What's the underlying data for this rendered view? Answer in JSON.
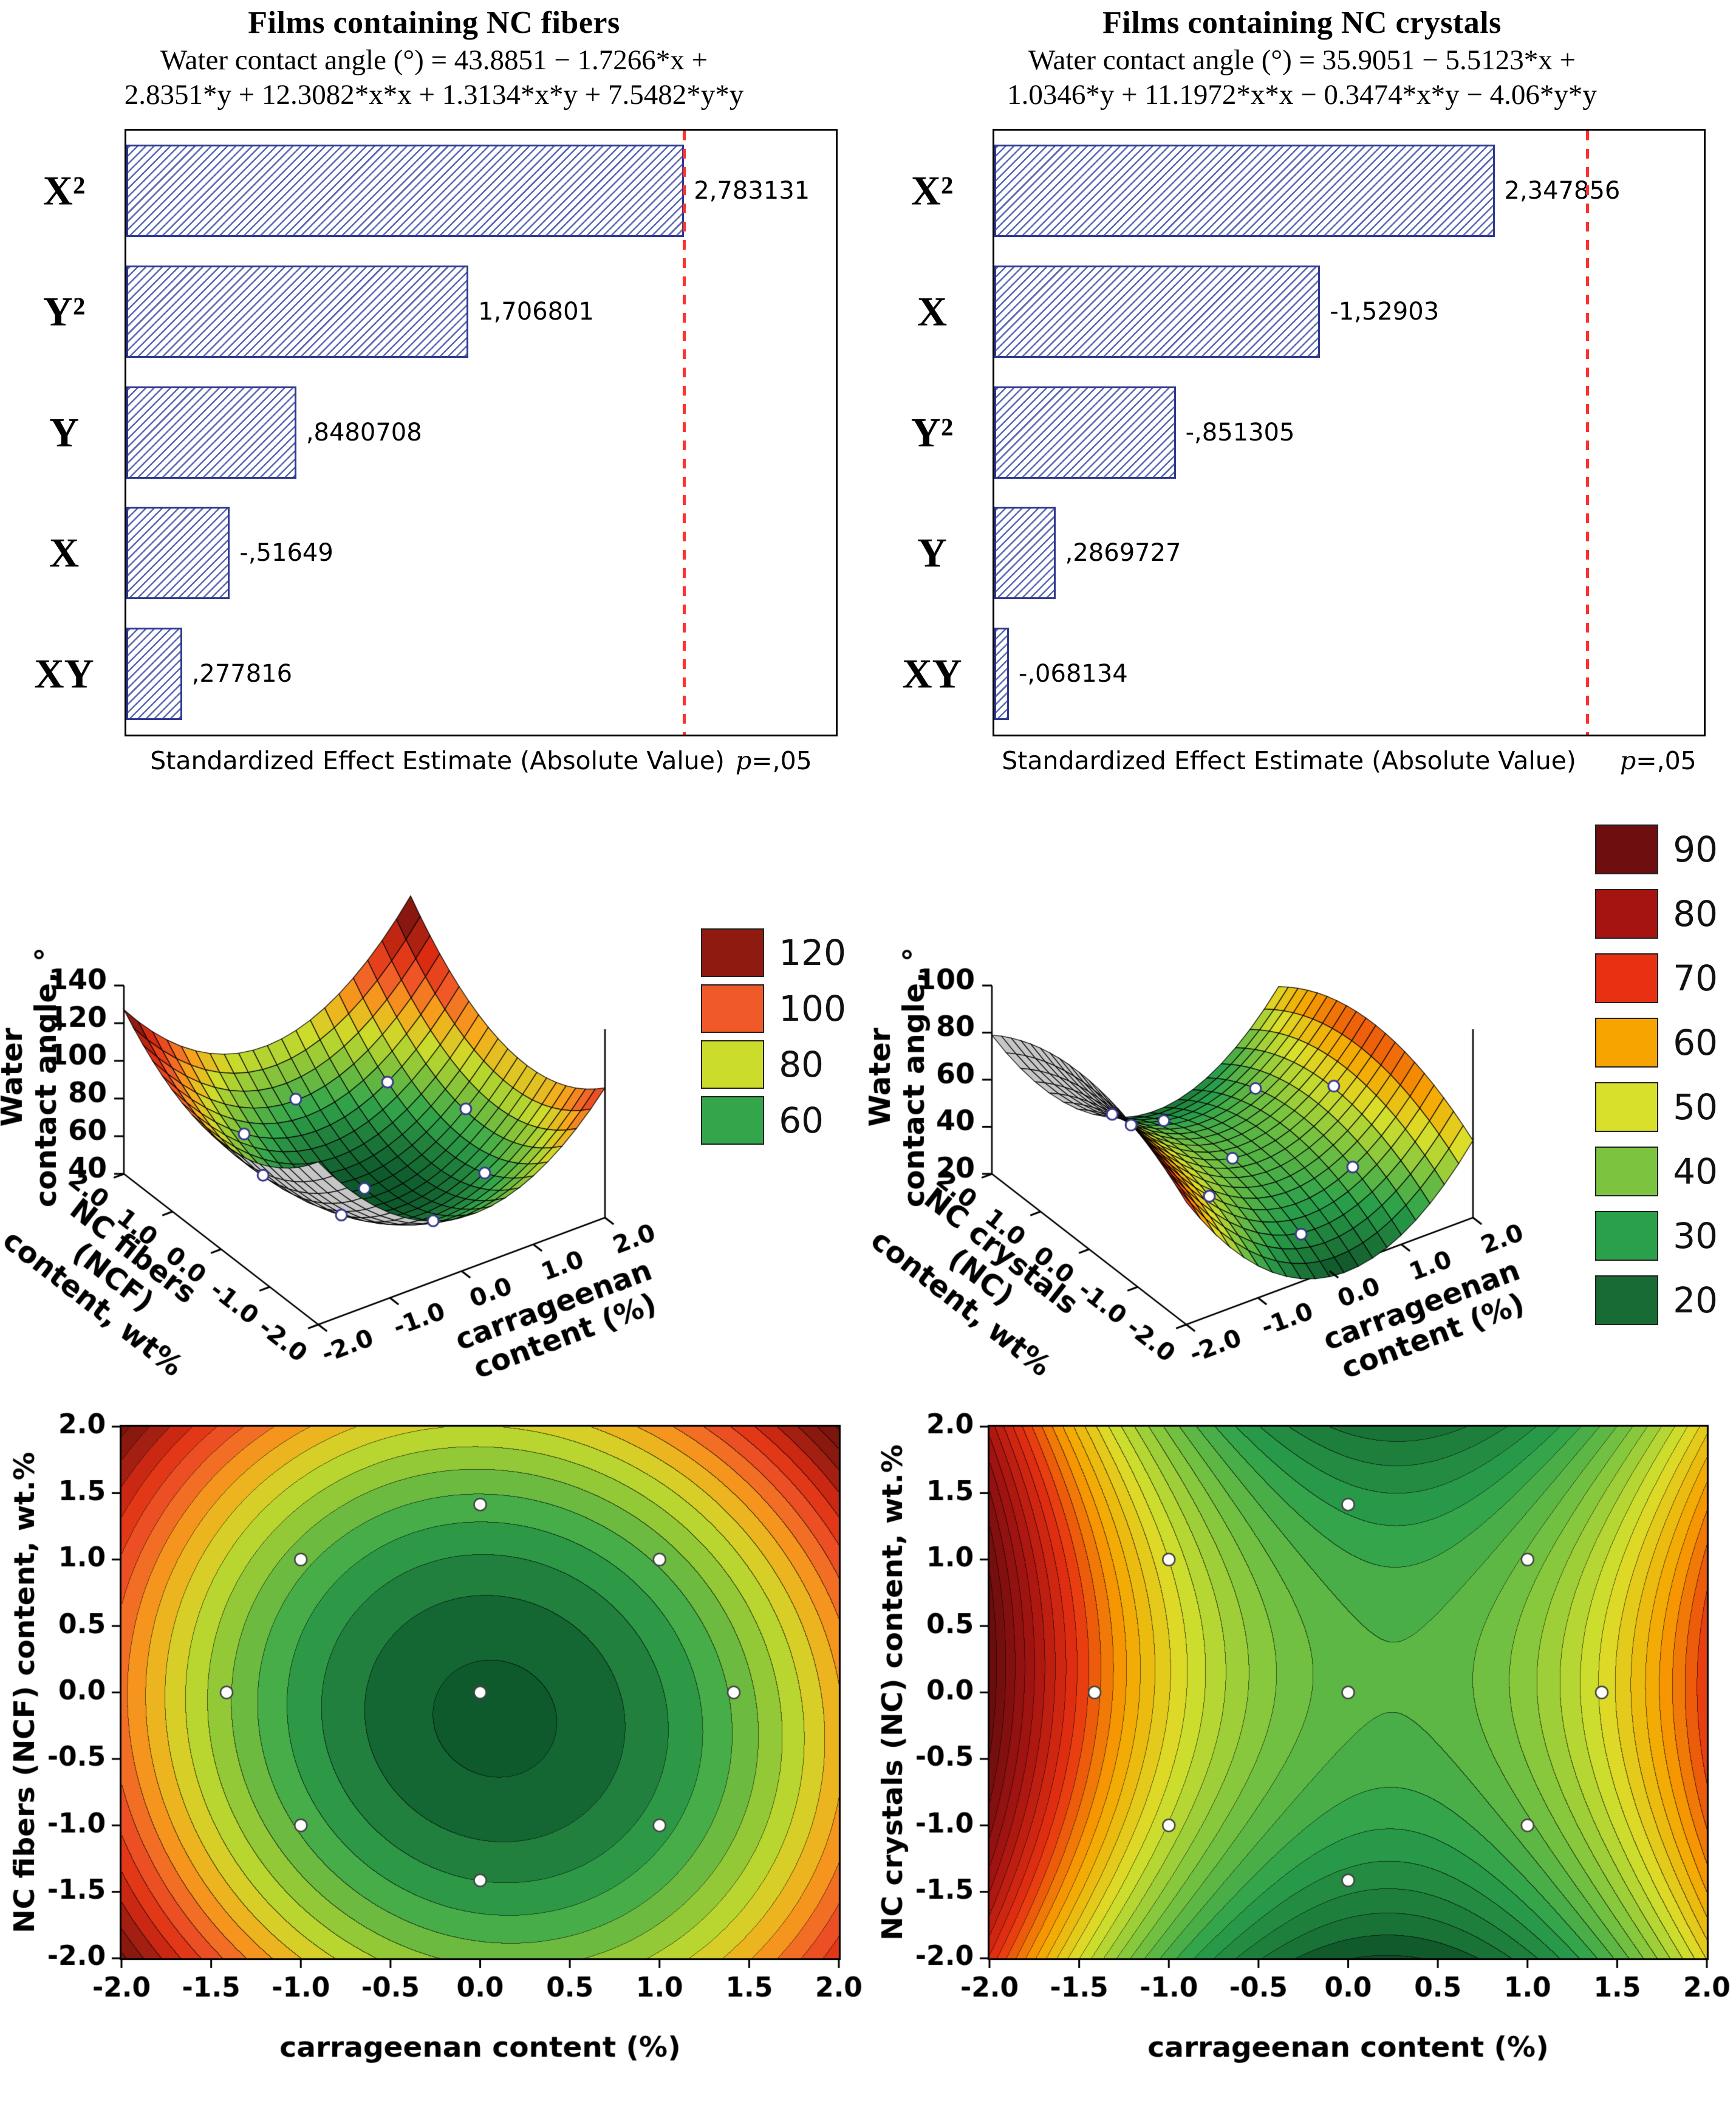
{
  "page": {
    "background": "#ffffff"
  },
  "chart_data": [
    {
      "id": "pareto_ncf",
      "type": "bar",
      "orientation": "horizontal",
      "title": "Films containing NC fibers",
      "equation_text": [
        "Water contact angle (°) = 43.8851 − 1.7266*x +",
        "2.8351*y + 12.3082*x*x + 1.3134*x*y + 7.5482*y*y"
      ],
      "categories": [
        "X²",
        "Y²",
        "Y",
        "X",
        "XY"
      ],
      "values": [
        2.783131,
        1.706801,
        0.8480708,
        -0.51649,
        0.277816
      ],
      "value_labels": [
        "2,783131",
        "1,706801",
        ",8480708",
        "-,51649",
        ",277816"
      ],
      "xlabel": "Standardized Effect Estimate (Absolute Value)",
      "p_label": "p",
      "p_value": "=,05",
      "xlim": [
        0,
        3.54
      ],
      "threshold": 2.776,
      "bar_color": "#4a58a8",
      "threshold_color": "#ff3030"
    },
    {
      "id": "pareto_nc",
      "type": "bar",
      "orientation": "horizontal",
      "title": "Films containing NC crystals",
      "equation_text": [
        "Water contact angle (°) = 35.9051 − 5.5123*x +",
        "1.0346*y + 11.1972*x*x − 0.3474*x*y − 4.06*y*y"
      ],
      "categories": [
        "X²",
        "X",
        "Y²",
        "Y",
        "XY"
      ],
      "values": [
        2.347856,
        -1.52903,
        -0.851305,
        0.2869727,
        -0.068134
      ],
      "value_labels": [
        "2,347856",
        "-1,52903",
        "-,851305",
        ",2869727",
        "-,068134"
      ],
      "xlabel": "Standardized Effect Estimate (Absolute Value)",
      "p_label": "p",
      "p_value": "=,05",
      "xlim": [
        0,
        3.33
      ],
      "threshold": 2.776,
      "bar_color": "#4a58a8",
      "threshold_color": "#ff3030"
    },
    {
      "id": "surface_ncf",
      "type": "surface3d",
      "coeffs": {
        "c": 43.8851,
        "x": -1.7266,
        "y": 2.8351,
        "xx": 12.3082,
        "xy": 1.3134,
        "yy": 7.5482
      },
      "x_range": [
        -2,
        2
      ],
      "y_range": [
        -2,
        2
      ],
      "z_range": [
        40,
        140
      ],
      "z_ticks": [
        40,
        60,
        80,
        100,
        120,
        140
      ],
      "axis_ticks": [
        -2,
        -1,
        0,
        1,
        2
      ],
      "zlabel_lines": [
        "Water",
        "contact angle, °"
      ],
      "xlabel_lines": [
        "carrageenan",
        "content (%)"
      ],
      "ylabel_lines": [
        "NC fibers",
        "(NCF)",
        "content, wt%"
      ],
      "colormap": [
        [
          45,
          "#0e5a2d"
        ],
        [
          60,
          "#33a64c"
        ],
        [
          80,
          "#ccdc2b"
        ],
        [
          90,
          "#f7a81b"
        ],
        [
          100,
          "#f05a28"
        ],
        [
          110,
          "#dd2c12"
        ],
        [
          120,
          "#8f1a10"
        ],
        [
          140,
          "#5c0c09"
        ]
      ],
      "legend": {
        "values": [
          "120",
          "100",
          "80",
          "60"
        ],
        "colors": [
          "#8f1a10",
          "#f05a28",
          "#ccdc2b",
          "#33a64c"
        ]
      },
      "underside_color": "#c6c6c6",
      "design_points": [
        [
          0,
          1.414
        ],
        [
          -1,
          1
        ],
        [
          1,
          1
        ],
        [
          -1.414,
          0
        ],
        [
          0,
          0
        ],
        [
          1.414,
          0
        ],
        [
          -1,
          -1
        ],
        [
          1,
          -1
        ],
        [
          0,
          -1.414
        ]
      ]
    },
    {
      "id": "surface_nc",
      "type": "surface3d",
      "coeffs": {
        "c": 35.9051,
        "x": -5.5123,
        "y": 1.0346,
        "xx": 11.1972,
        "xy": -0.3474,
        "yy": -4.06
      },
      "x_range": [
        -2,
        2
      ],
      "y_range": [
        -2,
        2
      ],
      "z_range": [
        20,
        100
      ],
      "z_ticks": [
        20,
        40,
        60,
        80,
        100
      ],
      "axis_ticks": [
        -2,
        -1,
        0,
        1,
        2
      ],
      "zlabel_lines": [
        "Water",
        "contact angle, °"
      ],
      "xlabel_lines": [
        "carrageenan",
        "content (%)"
      ],
      "ylabel_lines": [
        "NC crystals",
        "(NC)",
        "content, wt%"
      ],
      "colormap": [
        [
          18,
          "#0d4f27"
        ],
        [
          20,
          "#176b33"
        ],
        [
          30,
          "#2aa04b"
        ],
        [
          40,
          "#7cc440"
        ],
        [
          50,
          "#d9e02b"
        ],
        [
          60,
          "#f7a400"
        ],
        [
          70,
          "#e73112"
        ],
        [
          80,
          "#a61411"
        ],
        [
          90,
          "#6e0e0e"
        ],
        [
          95,
          "#5a0b0b"
        ]
      ],
      "legend": {
        "values": [
          "90",
          "80",
          "70",
          "60",
          "50",
          "40",
          "30",
          "20"
        ],
        "colors": [
          "#6e0e0e",
          "#a61411",
          "#e73112",
          "#f7a400",
          "#d9e02b",
          "#7cc440",
          "#2aa04b",
          "#176b33"
        ]
      },
      "underside_color": "#c6c6c6",
      "design_points": [
        [
          0,
          1.414
        ],
        [
          -1,
          1
        ],
        [
          1,
          1
        ],
        [
          -1.414,
          0
        ],
        [
          0,
          0
        ],
        [
          1.414,
          0
        ],
        [
          -1,
          -1
        ],
        [
          1,
          -1
        ],
        [
          0,
          -1.414
        ]
      ]
    },
    {
      "id": "contour_ncf",
      "type": "contour",
      "coeffs": {
        "c": 43.8851,
        "x": -1.7266,
        "y": 2.8351,
        "xx": 12.3082,
        "xy": 1.3134,
        "yy": 7.5482
      },
      "x_range": [
        -2,
        2
      ],
      "y_range": [
        -2,
        2
      ],
      "xticks": [
        -2,
        -1.5,
        -1,
        -0.5,
        0,
        0.5,
        1,
        1.5,
        2
      ],
      "yticks": [
        -2,
        -1.5,
        -1,
        -0.5,
        0,
        0.5,
        1,
        1.5,
        2
      ],
      "xlabel": "carrageenan content (%)",
      "ylabel": "NC fibers (NCF) content, wt.%",
      "band_step": 5,
      "colormap": [
        [
          45,
          "#0e5a2d"
        ],
        [
          60,
          "#33a64c"
        ],
        [
          80,
          "#ccdc2b"
        ],
        [
          90,
          "#f7a81b"
        ],
        [
          100,
          "#f05a28"
        ],
        [
          110,
          "#dd2c12"
        ],
        [
          120,
          "#8f1a10"
        ],
        [
          140,
          "#5c0c09"
        ]
      ],
      "design_points": [
        [
          0,
          1.414
        ],
        [
          -1,
          1
        ],
        [
          1,
          1
        ],
        [
          -1.414,
          0
        ],
        [
          0,
          0
        ],
        [
          1.414,
          0
        ],
        [
          -1,
          -1
        ],
        [
          1,
          -1
        ],
        [
          0,
          -1.414
        ]
      ]
    },
    {
      "id": "contour_nc",
      "type": "contour",
      "coeffs": {
        "c": 35.9051,
        "x": -5.5123,
        "y": 1.0346,
        "xx": 11.1972,
        "xy": -0.3474,
        "yy": -4.06
      },
      "x_range": [
        -2,
        2
      ],
      "y_range": [
        -2,
        2
      ],
      "xticks": [
        -2,
        -1.5,
        -1,
        -0.5,
        0,
        0.5,
        1,
        1.5,
        2
      ],
      "yticks": [
        -2,
        -1.5,
        -1,
        -0.5,
        0,
        0.5,
        1,
        1.5,
        2
      ],
      "xlabel": "carrageenan content (%)",
      "ylabel": "NC crystals (NC) content, wt.%",
      "band_step": 2.5,
      "colormap": [
        [
          18,
          "#0d4f27"
        ],
        [
          20,
          "#176b33"
        ],
        [
          30,
          "#2aa04b"
        ],
        [
          40,
          "#7cc440"
        ],
        [
          50,
          "#d9e02b"
        ],
        [
          60,
          "#f7a400"
        ],
        [
          70,
          "#e73112"
        ],
        [
          80,
          "#a61411"
        ],
        [
          90,
          "#6e0e0e"
        ],
        [
          95,
          "#5a0b0b"
        ]
      ],
      "design_points": [
        [
          0,
          1.414
        ],
        [
          -1,
          1
        ],
        [
          1,
          1
        ],
        [
          -1.414,
          0
        ],
        [
          0,
          0
        ],
        [
          1.414,
          0
        ],
        [
          -1,
          -1
        ],
        [
          1,
          -1
        ],
        [
          0,
          -1.414
        ]
      ]
    }
  ]
}
